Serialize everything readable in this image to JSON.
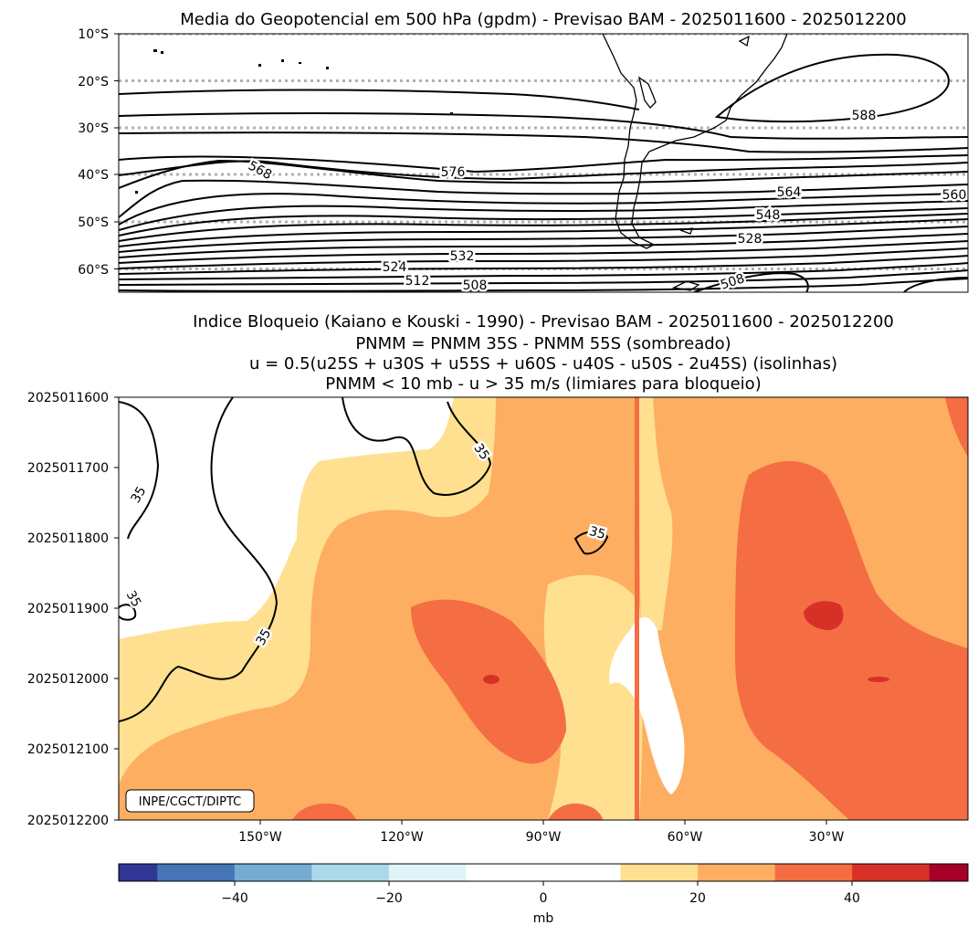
{
  "chart_data": [
    {
      "type": "contour-map",
      "title": "Media do Geopotencial em 500 hPa (gpdm) - Previsao BAM - 2025011600 - 2025012200",
      "y_ticks": [
        "10°S",
        "20°S",
        "30°S",
        "40°S",
        "50°S",
        "60°S"
      ],
      "ylim": [
        -65,
        -10
      ],
      "contour_labels": [
        {
          "text": "588",
          "lon": -29,
          "lat": -27.2
        },
        {
          "text": "576",
          "lon": -108,
          "lat": -39.6
        },
        {
          "text": "568",
          "lon": -150,
          "lat": -39
        },
        {
          "text": "564",
          "lon": -40,
          "lat": -44.4
        },
        {
          "text": "560",
          "lon": -7,
          "lat": -44.6
        },
        {
          "text": "548",
          "lon": -44,
          "lat": -48.6
        },
        {
          "text": "528",
          "lon": -48,
          "lat": -52.6
        },
        {
          "text": "532",
          "lon": -108,
          "lat": -56.8
        },
        {
          "text": "524",
          "lon": -122,
          "lat": -59.8
        },
        {
          "text": "512",
          "lon": -118,
          "lat": -62.6
        },
        {
          "text": "508",
          "lon": -105,
          "lat": -63.2
        },
        {
          "text": "508",
          "lon": -54,
          "lat": -61.9
        }
      ]
    },
    {
      "type": "filled-contour",
      "title_lines": [
        "Indice Bloqueio (Kaiano e Kouski - 1990) - Previsao BAM - 2025011600 - 2025012200",
        "PNMM = PNMM 35S - PNMM 55S (sombreado)",
        "u = 0.5(u25S + u30S + u55S + u60S - u40S - u50S - 2u45S) (isolinhas)",
        "PNMM < 10 mb - u > 35 m/s (limiares para bloqueio)"
      ],
      "x_ticks": [
        "150°W",
        "120°W",
        "90°W",
        "60°W",
        "30°W"
      ],
      "x_tick_values": [
        -150,
        -120,
        -90,
        -60,
        -30
      ],
      "y_ticks": [
        "2025011600",
        "2025011700",
        "2025011800",
        "2025011900",
        "2025012000",
        "2025012100",
        "2025012200"
      ],
      "xlim": [
        -180,
        0
      ],
      "ylim": [
        0,
        6
      ],
      "contour_label": "35",
      "watermark": "INPE/CGCT/DIPTC"
    },
    {
      "type": "colorbar",
      "label": "mb",
      "ticks": [
        "−40",
        "−20",
        "0",
        "20",
        "40"
      ],
      "tick_values": [
        -40,
        -20,
        0,
        20,
        40
      ],
      "range": [
        -55,
        55
      ],
      "levels": [
        -55,
        -50,
        -40,
        -30,
        -20,
        -10,
        10,
        20,
        30,
        40,
        50,
        55
      ],
      "colors": [
        "#313695",
        "#4575b4",
        "#74add1",
        "#abd9e9",
        "#e0f3f8",
        "#ffffff",
        "#fee090",
        "#fdae61",
        "#f46d43",
        "#d73027",
        "#a50026"
      ]
    }
  ]
}
